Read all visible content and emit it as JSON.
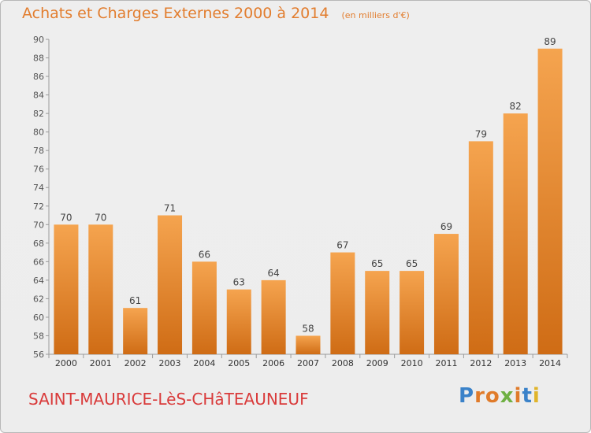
{
  "chart_data": {
    "type": "bar",
    "title": "Achats et Charges Externes 2000 à 2014",
    "subtitle": "(en milliers d'€)",
    "categories": [
      "2000",
      "2001",
      "2002",
      "2003",
      "2004",
      "2005",
      "2006",
      "2007",
      "2008",
      "2009",
      "2010",
      "2011",
      "2012",
      "2013",
      "2014"
    ],
    "values": [
      70,
      70,
      61,
      71,
      66,
      63,
      64,
      58,
      67,
      65,
      65,
      69,
      79,
      82,
      89
    ],
    "ylim": [
      56,
      90
    ],
    "yticks": [
      56,
      58,
      60,
      62,
      64,
      66,
      68,
      70,
      72,
      74,
      76,
      78,
      80,
      82,
      84,
      86,
      88,
      90
    ],
    "xlabel": "",
    "ylabel": "",
    "grid": false,
    "bar_color_light": "#f5a44f",
    "bar_color_dark": "#cf6c15"
  },
  "footer": {
    "commune": "SAINT-MAURICE-LèS-CHâTEAUNEUF",
    "logo": [
      "P",
      "r",
      "o",
      "x",
      "i",
      "t",
      "i"
    ],
    "logo_colors": [
      "#3a82c9",
      "#e07b2a",
      "#e07b2a",
      "#6fb043",
      "#e07b2a",
      "#3a82c9",
      "#e0b42a"
    ]
  }
}
